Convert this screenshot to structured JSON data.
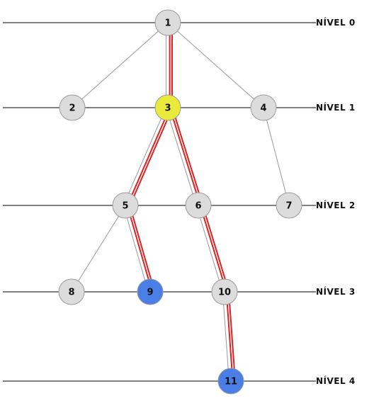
{
  "colors": {
    "node_default": "#dcdcdc",
    "node_highlight": "#eaea3c",
    "node_blue": "#4a7fe8",
    "path_red": "#e02222",
    "edge_gray": "#999999",
    "level_line": "#000000"
  },
  "levels": [
    {
      "id": 0,
      "label": "NÍVEL 0"
    },
    {
      "id": 1,
      "label": "NÍVEL 1"
    },
    {
      "id": 2,
      "label": "NÍVEL 2"
    },
    {
      "id": 3,
      "label": "NÍVEL 3"
    },
    {
      "id": 4,
      "label": "NÍVEL 4"
    }
  ],
  "nodes": [
    {
      "id": "1",
      "label": "1",
      "level": 0,
      "state": "default"
    },
    {
      "id": "2",
      "label": "2",
      "level": 1,
      "state": "default"
    },
    {
      "id": "3",
      "label": "3",
      "level": 1,
      "state": "highlight"
    },
    {
      "id": "4",
      "label": "4",
      "level": 1,
      "state": "default"
    },
    {
      "id": "5",
      "label": "5",
      "level": 2,
      "state": "default"
    },
    {
      "id": "6",
      "label": "6",
      "level": 2,
      "state": "default"
    },
    {
      "id": "7",
      "label": "7",
      "level": 2,
      "state": "default"
    },
    {
      "id": "8",
      "label": "8",
      "level": 3,
      "state": "default"
    },
    {
      "id": "9",
      "label": "9",
      "level": 3,
      "state": "blue"
    },
    {
      "id": "10",
      "label": "10",
      "level": 3,
      "state": "default"
    },
    {
      "id": "11",
      "label": "11",
      "level": 4,
      "state": "blue"
    }
  ],
  "edges": [
    {
      "from": "1",
      "to": "2",
      "path": false
    },
    {
      "from": "1",
      "to": "3",
      "path": true
    },
    {
      "from": "1",
      "to": "4",
      "path": false
    },
    {
      "from": "3",
      "to": "5",
      "path": true
    },
    {
      "from": "3",
      "to": "6",
      "path": true
    },
    {
      "from": "4",
      "to": "7",
      "path": false
    },
    {
      "from": "5",
      "to": "8",
      "path": false
    },
    {
      "from": "5",
      "to": "9",
      "path": true
    },
    {
      "from": "6",
      "to": "10",
      "path": true
    },
    {
      "from": "10",
      "to": "11",
      "path": true
    }
  ]
}
